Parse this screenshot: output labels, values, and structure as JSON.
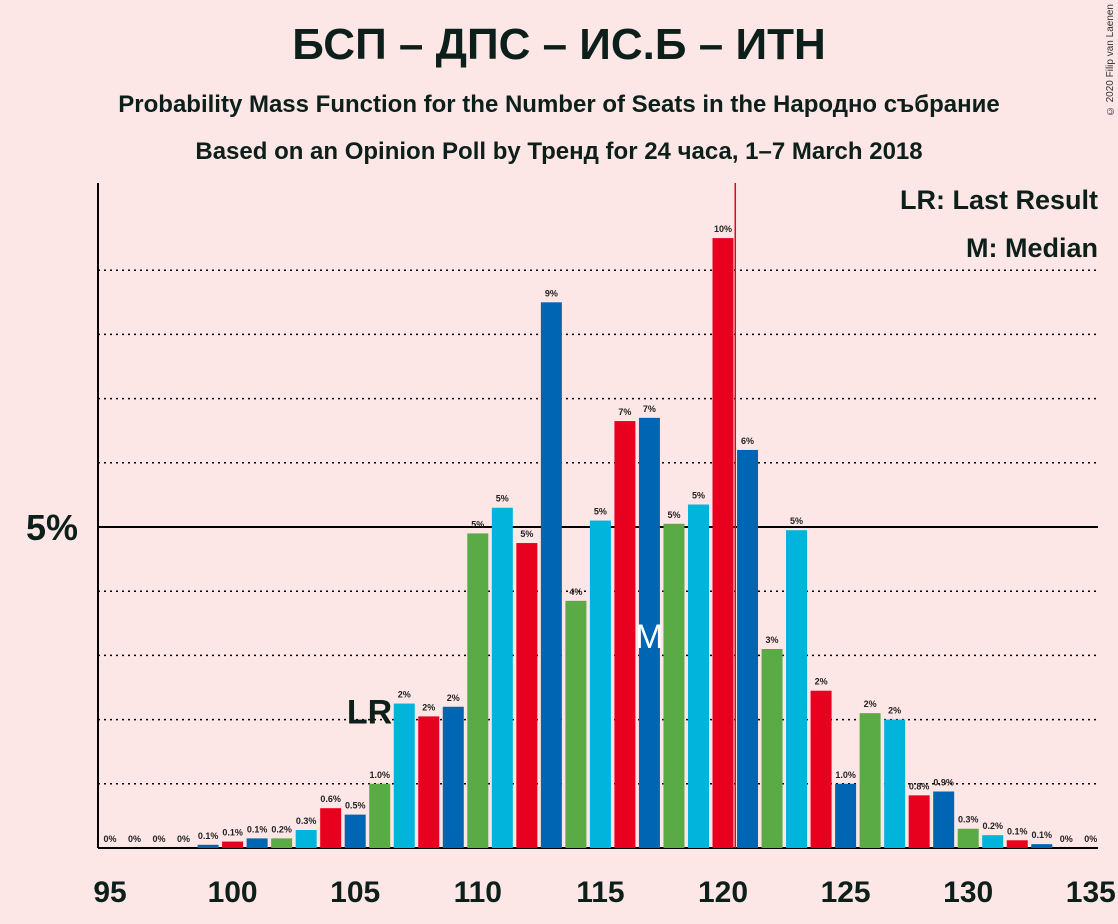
{
  "title": "БСП – ДПС – ИС.Б – ИТН",
  "subtitle": "Probability Mass Function for the Number of Seats in the Народно събрание",
  "subtitle2": "Based on an Opinion Poll by Тренд for 24 часа, 1–7 March 2018",
  "copyright": "© 2020 Filip van Laenen",
  "colors": {
    "red": "#e8001f",
    "blue": "#0066b3",
    "green": "#5aaa46",
    "cyan": "#00b4dc",
    "background": "#fde6e6"
  },
  "chart_data": {
    "type": "bar",
    "title": "БСП – ДПС – ИС.Б – ИТН",
    "x": [
      95,
      96,
      97,
      98,
      99,
      100,
      101,
      102,
      103,
      104,
      105,
      106,
      107,
      108,
      109,
      110,
      111,
      112,
      113,
      114,
      115,
      116,
      117,
      118,
      119,
      120,
      121,
      122,
      123,
      124,
      125,
      126,
      127,
      128,
      129,
      130,
      131,
      132,
      133,
      134,
      135
    ],
    "values": [
      0,
      0,
      0,
      0,
      0.05,
      0.1,
      0.15,
      0.15,
      0.28,
      0.62,
      0.52,
      1.0,
      2.25,
      2.05,
      2.2,
      4.9,
      5.3,
      4.75,
      8.5,
      3.85,
      5.1,
      6.65,
      6.7,
      5.05,
      5.35,
      9.5,
      6.2,
      3.1,
      4.95,
      2.45,
      1.0,
      2.1,
      2.0,
      0.82,
      0.88,
      0.3,
      0.2,
      0.12,
      0.06,
      0,
      0
    ],
    "labels": [
      "0%",
      "0%",
      "0%",
      "0%",
      "0.1%",
      "0.1%",
      "0.1%",
      "0.2%",
      "0.3%",
      "0.6%",
      "0.5%",
      "1.0%",
      "2%",
      "2%",
      "2%",
      "5%",
      "5%",
      "5%",
      "9%",
      "4%",
      "5%",
      "7%",
      "7%",
      "5%",
      "5%",
      "10%",
      "6%",
      "3%",
      "5%",
      "2%",
      "1.0%",
      "2%",
      "2%",
      "0.8%",
      "0.9%",
      "0.3%",
      "0.2%",
      "0.1%",
      "0.1%",
      "0%",
      "0%"
    ],
    "bar_colors": [
      "red",
      "blue",
      "green",
      "cyan",
      "blue",
      "red",
      "blue",
      "green",
      "cyan",
      "red",
      "blue",
      "green",
      "cyan",
      "red",
      "blue",
      "green",
      "cyan",
      "red",
      "blue",
      "green",
      "cyan",
      "red",
      "blue",
      "green",
      "cyan",
      "red",
      "blue",
      "green",
      "cyan",
      "red",
      "blue",
      "green",
      "cyan",
      "red",
      "blue",
      "green",
      "cyan",
      "red",
      "blue",
      "green",
      "cyan"
    ],
    "x_ticks": [
      95,
      100,
      105,
      110,
      115,
      120,
      125,
      130,
      135
    ],
    "y_label_5": "5%",
    "ylim": [
      0,
      10.4
    ],
    "last_result": 107,
    "median": 117,
    "majority_line": 120.5,
    "legend": {
      "lr": "LR: Last Result",
      "m": "M: Median"
    },
    "lr_label": "LR",
    "m_label": "M"
  }
}
